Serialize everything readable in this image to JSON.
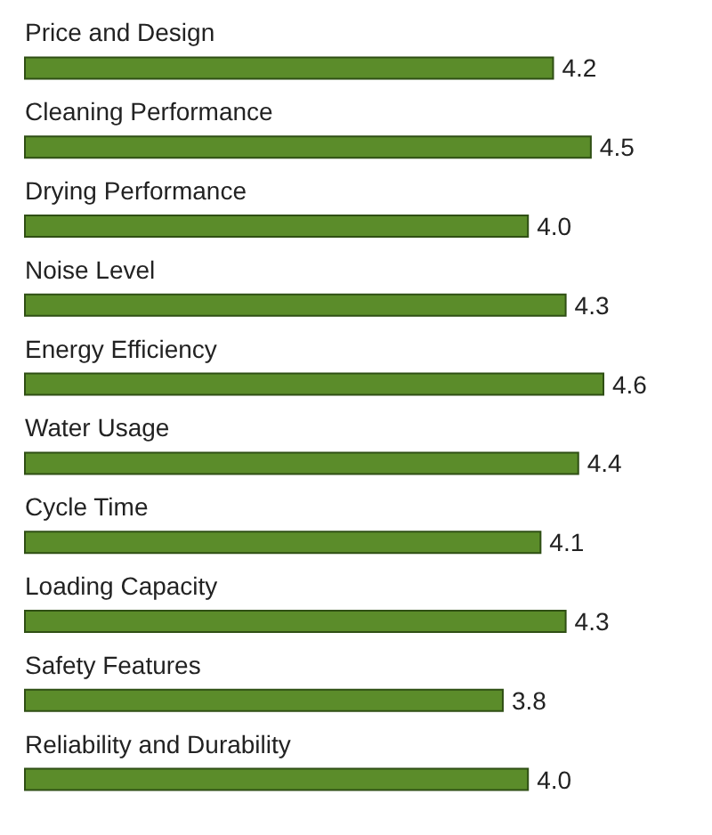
{
  "chart_data": {
    "type": "bar",
    "orientation": "horizontal",
    "categories": [
      "Price and Design",
      "Cleaning Performance",
      "Drying Performance",
      "Noise Level",
      "Energy Efficiency",
      "Water Usage",
      "Cycle Time",
      "Loading Capacity",
      "Safety Features",
      "Reliability and Durability"
    ],
    "values": [
      4.2,
      4.5,
      4.0,
      4.3,
      4.6,
      4.4,
      4.1,
      4.3,
      3.8,
      4.0
    ],
    "value_labels": [
      "4.2",
      "4.5",
      "4.0",
      "4.3",
      "4.6",
      "4.4",
      "4.1",
      "4.3",
      "3.8",
      "4.0"
    ],
    "color": "#5b8c2a"
  }
}
